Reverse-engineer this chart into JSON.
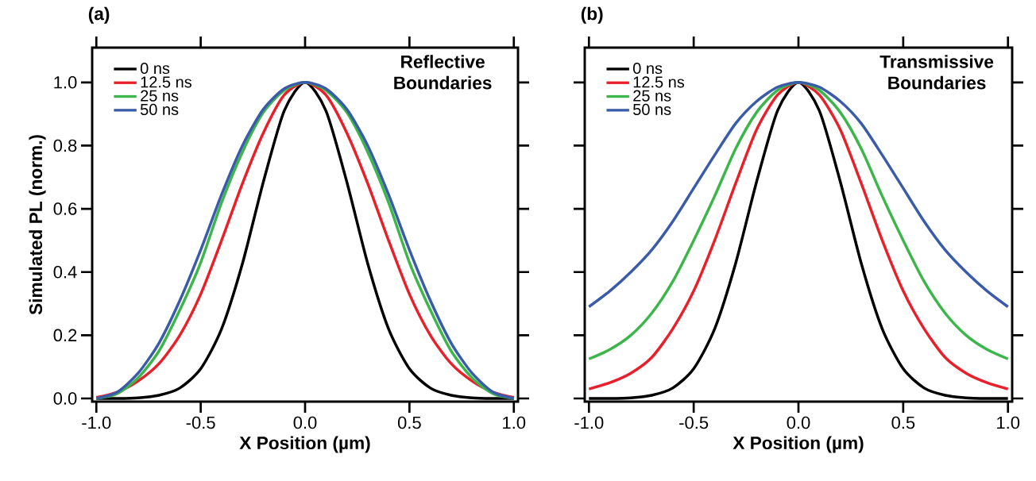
{
  "chart_data": [
    {
      "type": "line",
      "title": "(a)",
      "xlabel": "X Position (µm)",
      "ylabel": "Simulated PL (norm.)",
      "annotations": [
        "Reflective Boundaries"
      ],
      "legend": "top left",
      "line_style": "solid",
      "xlim": [
        -1.02,
        1.02
      ],
      "ylim": [
        -0.01,
        1.11
      ],
      "xticks": [
        {
          "value": -1,
          "label": "-1.0"
        },
        {
          "value": -0.5,
          "label": "-0.5"
        },
        {
          "value": 0,
          "label": "0.0"
        },
        {
          "value": 0.5,
          "label": "0.5"
        },
        {
          "value": 1,
          "label": "1.0"
        }
      ],
      "yticks": [
        {
          "value": 0,
          "label": "0.0"
        },
        {
          "value": 0.2,
          "label": "0.2"
        },
        {
          "value": 0.4,
          "label": "0.4"
        },
        {
          "value": 0.6,
          "label": "0.6"
        },
        {
          "value": 0.8,
          "label": "0.8"
        },
        {
          "value": 1,
          "label": "1.0"
        }
      ],
      "x": [
        -1,
        -0.9,
        -0.8,
        -0.7,
        -0.6,
        -0.5,
        -0.4,
        -0.3,
        -0.2,
        -0.1,
        0,
        0.1,
        0.2,
        0.3,
        0.4,
        0.5,
        0.6,
        0.7,
        0.8,
        0.9,
        1
      ],
      "series": [
        {
          "name": "0 ns",
          "color": "#000000",
          "values": [
            0,
            0,
            0.002,
            0.01,
            0.033,
            0.094,
            0.22,
            0.427,
            0.685,
            0.91,
            1,
            0.91,
            0.685,
            0.427,
            0.22,
            0.094,
            0.033,
            0.01,
            0.002,
            0,
            0
          ]
        },
        {
          "name": "12.5 ns",
          "color": "#e8202a",
          "values": [
            0.003,
            0.02,
            0.055,
            0.11,
            0.2,
            0.33,
            0.5,
            0.68,
            0.84,
            0.96,
            1,
            0.96,
            0.84,
            0.68,
            0.5,
            0.33,
            0.2,
            0.11,
            0.055,
            0.02,
            0.003
          ]
        },
        {
          "name": "25 ns",
          "color": "#3cb54a",
          "values": [
            0,
            0.015,
            0.065,
            0.15,
            0.28,
            0.43,
            0.62,
            0.78,
            0.905,
            0.975,
            1,
            0.975,
            0.905,
            0.78,
            0.62,
            0.43,
            0.28,
            0.15,
            0.065,
            0.015,
            0
          ]
        },
        {
          "name": "50 ns",
          "color": "#3a5ba9",
          "values": [
            0,
            0.02,
            0.08,
            0.175,
            0.31,
            0.47,
            0.645,
            0.8,
            0.915,
            0.98,
            1,
            0.98,
            0.915,
            0.8,
            0.645,
            0.47,
            0.31,
            0.175,
            0.08,
            0.02,
            0
          ]
        }
      ]
    },
    {
      "type": "line",
      "title": "(b)",
      "xlabel": "X Position (µm)",
      "annotations": [
        "Transmissive Boundaries"
      ],
      "legend": "top left",
      "line_style": "solid",
      "tick_labels": "x",
      "xlim": [
        -1.02,
        1.02
      ],
      "ylim": [
        -0.01,
        1.11
      ],
      "xticks": [
        {
          "value": -1,
          "label": "-1.0"
        },
        {
          "value": -0.5,
          "label": "-0.5"
        },
        {
          "value": 0,
          "label": "0.0"
        },
        {
          "value": 0.5,
          "label": "0.5"
        },
        {
          "value": 1,
          "label": "1.0"
        }
      ],
      "yticks": [
        0,
        0.2,
        0.4,
        0.6,
        0.8,
        1
      ],
      "x": [
        -1,
        -0.9,
        -0.8,
        -0.7,
        -0.6,
        -0.5,
        -0.4,
        -0.3,
        -0.2,
        -0.1,
        0,
        0.1,
        0.2,
        0.3,
        0.4,
        0.5,
        0.6,
        0.7,
        0.8,
        0.9,
        1
      ],
      "series": [
        {
          "name": "0 ns",
          "color": "#000000",
          "values": [
            0,
            0,
            0.002,
            0.01,
            0.033,
            0.094,
            0.22,
            0.427,
            0.685,
            0.91,
            1,
            0.91,
            0.685,
            0.427,
            0.22,
            0.094,
            0.033,
            0.01,
            0.002,
            0,
            0
          ]
        },
        {
          "name": "12.5 ns",
          "color": "#e8202a",
          "values": [
            0.03,
            0.05,
            0.08,
            0.13,
            0.22,
            0.34,
            0.5,
            0.68,
            0.85,
            0.96,
            1,
            0.96,
            0.85,
            0.68,
            0.5,
            0.34,
            0.22,
            0.13,
            0.08,
            0.05,
            0.03
          ]
        },
        {
          "name": "25 ns",
          "color": "#3cb54a",
          "values": [
            0.125,
            0.155,
            0.2,
            0.27,
            0.37,
            0.5,
            0.64,
            0.79,
            0.905,
            0.975,
            1,
            0.975,
            0.905,
            0.79,
            0.64,
            0.5,
            0.37,
            0.27,
            0.2,
            0.155,
            0.125
          ]
        },
        {
          "name": "50 ns",
          "color": "#3a5ba9",
          "values": [
            0.29,
            0.34,
            0.4,
            0.47,
            0.56,
            0.665,
            0.77,
            0.87,
            0.94,
            0.985,
            1,
            0.985,
            0.94,
            0.87,
            0.77,
            0.665,
            0.56,
            0.47,
            0.4,
            0.34,
            0.29
          ]
        }
      ]
    }
  ]
}
